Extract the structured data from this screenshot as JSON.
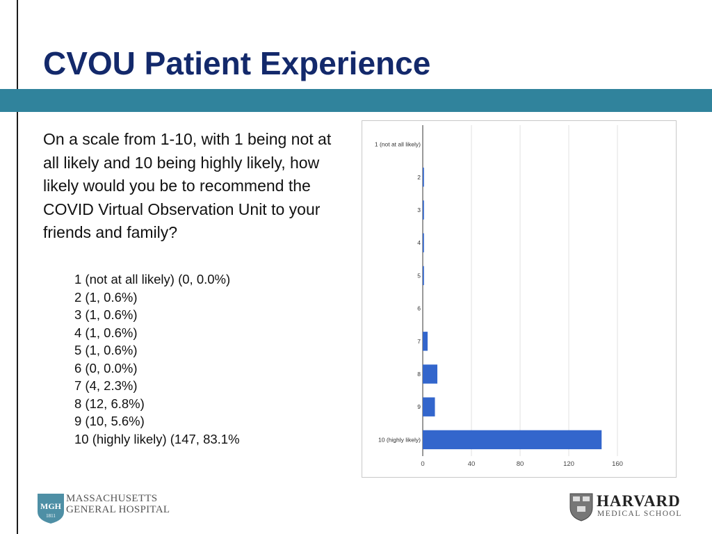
{
  "slide": {
    "title": "CVOU Patient Experience",
    "question": "On a scale from 1-10, with 1 being not at all likely and 10 being highly likely, how likely would you be to recommend the COVID Virtual Observation Unit to your friends and family?",
    "answers": [
      "1 (not at all likely) (0, 0.0%)",
      "2 (1, 0.6%)",
      "3 (1, 0.6%)",
      "4 (1, 0.6%)",
      "5 (1, 0.6%)",
      "6 (0, 0.0%)",
      "7 (4, 2.3%)",
      "8 (12, 6.8%)",
      "9 (10, 5.6%)",
      "10 (highly likely) (147, 83.1%"
    ]
  },
  "logos": {
    "mgh": {
      "badge": "MGH",
      "year": "1811",
      "line1": "MASSACHUSETTS",
      "line2": "GENERAL HOSPITAL"
    },
    "harvard": {
      "name": "HARVARD",
      "sub": "MEDICAL SCHOOL"
    }
  },
  "colors": {
    "title": "#13296b",
    "band": "#30839c",
    "bar": "#3366cc"
  },
  "chart_data": {
    "type": "bar",
    "orientation": "horizontal",
    "categories": [
      "1 (not at all likely)",
      "2",
      "3",
      "4",
      "5",
      "6",
      "7",
      "8",
      "9",
      "10 (highly likely)"
    ],
    "values": [
      0,
      1,
      1,
      1,
      1,
      0,
      4,
      12,
      10,
      147
    ],
    "xlim": [
      0,
      160
    ],
    "xticks": [
      0,
      40,
      80,
      120,
      160
    ],
    "grid": true,
    "title": "",
    "xlabel": "",
    "ylabel": ""
  }
}
